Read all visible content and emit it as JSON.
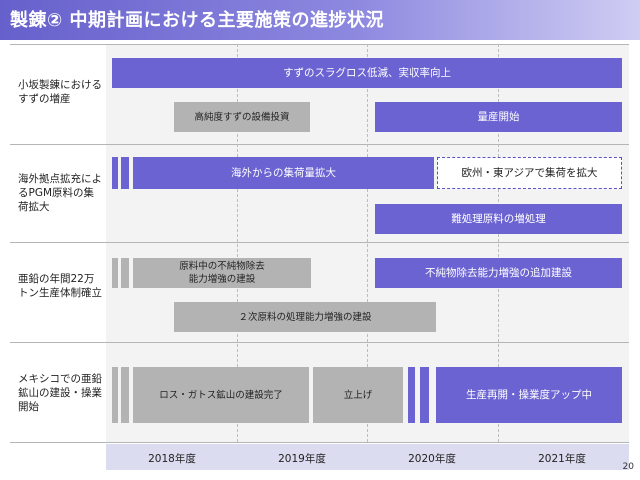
{
  "header": {
    "title": "製錬② 中期計画における主要施策の進捗状況"
  },
  "rows": [
    {
      "label": "小坂製錬におけるすずの増産",
      "bars": {
        "main": "すずのスラグロス低減、実収率向上",
        "gray": "高純度すずの設備投資",
        "production": "量産開始"
      }
    },
    {
      "label": "海外拠点拡充によるPGM原料の集荷拡大",
      "bars": {
        "main": "海外からの集荷量拡大",
        "dashed": "欧州・東アジアで集荷を拡大",
        "processing": "難処理原料の増処理"
      }
    },
    {
      "label": "亜鉛の年間22万トン生産体制確立",
      "bars": {
        "gray_line1": "原料中の不純物除去",
        "gray_line2": "能力増強の建設",
        "purple": "不純物除去能力増強の追加建設",
        "secondary": "２次原料の処理能力増強の建設"
      }
    },
    {
      "label": "メキシコでの亜鉛鉱山の建設・操業開始",
      "bars": {
        "construction": "ロス・ガトス鉱山の建設完了",
        "startup": "立上げ",
        "resume": "生産再開・操業度アップ中"
      }
    }
  ],
  "years": [
    "2018年度",
    "2019年度",
    "2020年度",
    "2021年度"
  ],
  "page_number": "20",
  "colors": {
    "accent_purple": "#6b63d1",
    "gray_bar": "#b3b3b3",
    "row_background": "#f3f3f3",
    "year_band": "#dcdcf0"
  }
}
